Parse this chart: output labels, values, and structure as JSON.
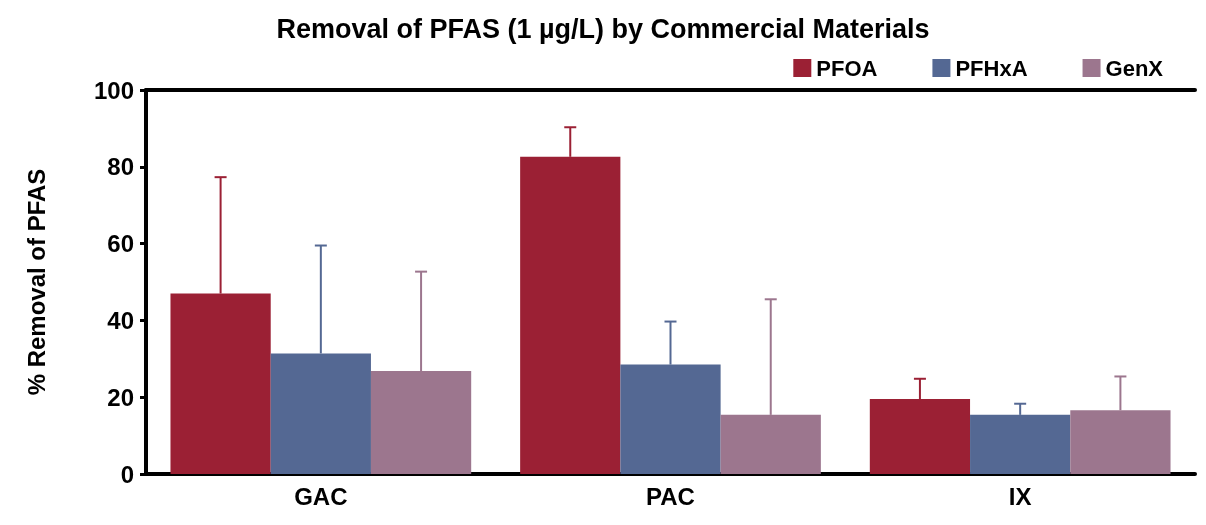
{
  "chart_data": {
    "type": "bar",
    "title": "Removal of PFAS (1 µg/L) by Commercial Materials",
    "ylabel": "% Removal of PFAS",
    "categories": [
      "GAC",
      "PAC",
      "IX"
    ],
    "series": [
      {
        "name": "PFOA",
        "color": "#9b2034",
        "values": [
          47,
          82.6,
          19.5
        ],
        "errors": [
          [
            47,
            77.3
          ],
          [
            82.6,
            90.3
          ],
          [
            19.5,
            24.8
          ]
        ]
      },
      {
        "name": "PFHxA",
        "color": "#546893",
        "values": [
          31.4,
          28.5,
          15.4
        ],
        "errors": [
          [
            31.4,
            59.5
          ],
          [
            28.5,
            39.7
          ],
          [
            15.4,
            18.3
          ]
        ]
      },
      {
        "name": "GenX",
        "color": "#9c768e",
        "values": [
          26.8,
          15.4,
          16.6
        ],
        "errors": [
          [
            26.8,
            52.7
          ],
          [
            15.4,
            45.5
          ],
          [
            16.6,
            25.4
          ]
        ]
      }
    ],
    "ylim": [
      0,
      100
    ],
    "yticks": [
      0,
      20,
      40,
      60,
      80,
      100
    ],
    "grid": false,
    "legend": "top right"
  }
}
